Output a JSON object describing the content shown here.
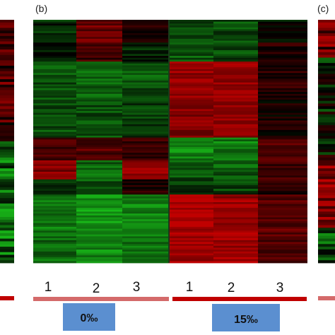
{
  "chart_data": {
    "type": "heatmap",
    "colors": {
      "low": "#18b818",
      "mid": "#000000",
      "high": "#c00000",
      "group_bar": "#c00000",
      "group_bar_light": "#d46a6a",
      "label_box": "#5b8fd0"
    },
    "panels": [
      {
        "label": "(b)",
        "columns": [
          "1",
          "2",
          "3",
          "1",
          "2",
          "3"
        ],
        "groups": [
          {
            "name": "0‰",
            "columns": [
              0,
              1,
              2
            ]
          },
          {
            "name": "15‰",
            "columns": [
              3,
              4,
              5
            ]
          }
        ],
        "row_blocks": [
          {
            "rows": 12,
            "values": [
              -0.2,
              0.55,
              0.1,
              -0.35,
              -0.4,
              -0.1
            ]
          },
          {
            "rows": 10,
            "values": [
              -0.15,
              0.3,
              -0.2,
              -0.45,
              -0.4,
              0.2
            ]
          },
          {
            "rows": 20,
            "values": [
              -0.45,
              -0.5,
              -0.45,
              0.8,
              0.75,
              0.2
            ]
          },
          {
            "rows": 20,
            "values": [
              -0.4,
              -0.4,
              -0.35,
              0.7,
              0.7,
              0.1
            ]
          },
          {
            "rows": 12,
            "values": [
              0.3,
              0.45,
              0.25,
              -0.7,
              -0.65,
              0.45
            ]
          },
          {
            "rows": 10,
            "values": [
              0.65,
              -0.55,
              0.7,
              -0.45,
              -0.5,
              0.35
            ]
          },
          {
            "rows": 8,
            "values": [
              -0.3,
              -0.45,
              0.2,
              -0.3,
              -0.35,
              0.2
            ]
          },
          {
            "rows": 22,
            "values": [
              -0.65,
              -0.8,
              -0.7,
              0.9,
              0.8,
              0.45
            ]
          },
          {
            "rows": 14,
            "values": [
              -0.55,
              -0.75,
              -0.55,
              0.85,
              0.85,
              0.35
            ]
          }
        ]
      },
      {
        "label": "(c)"
      }
    ]
  }
}
